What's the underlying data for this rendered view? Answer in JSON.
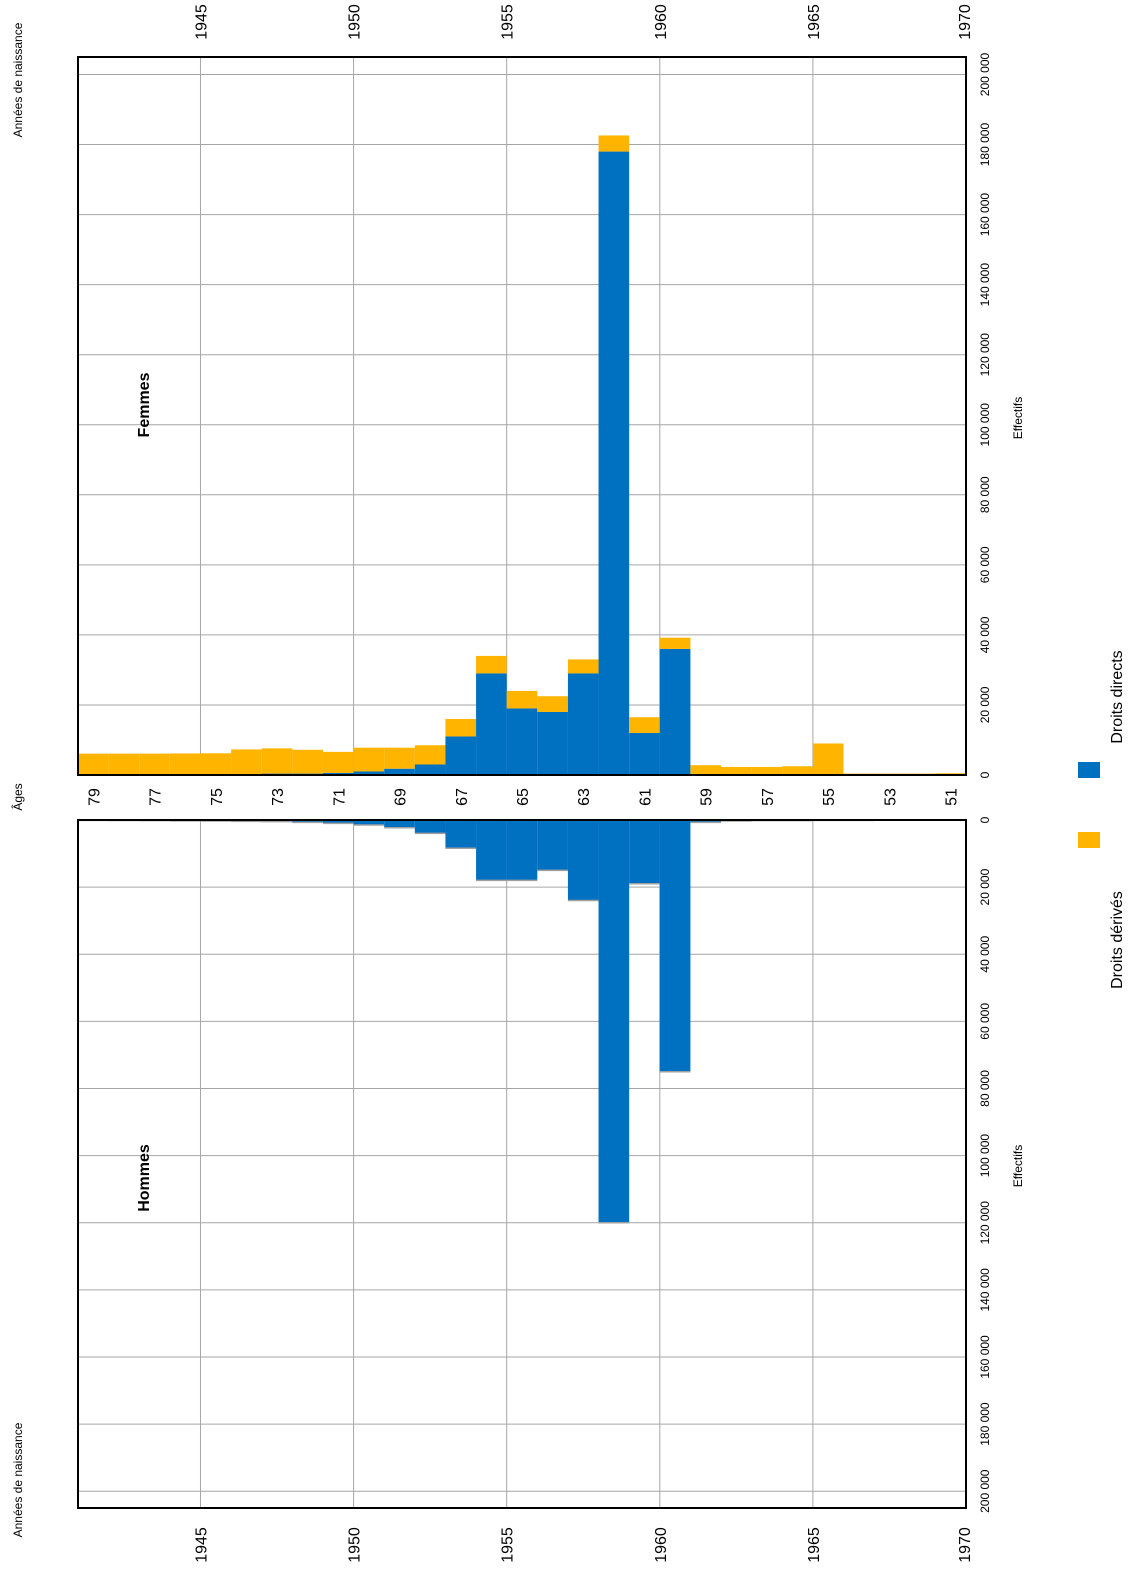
{
  "labels": {
    "birth_years_axis": "Années de naissance",
    "ages_axis": "Âges",
    "effectifs_axis": "Effectifs"
  },
  "colors": {
    "droits_directs": "#0070C0",
    "droits_derives": "#FFB400",
    "grid": "#a6a6a6"
  },
  "legend": [
    {
      "key": "droits_derives",
      "label": "Droits dérivés",
      "color": "#FFB400"
    },
    {
      "key": "droits_directs",
      "label": "Droits directs",
      "color": "#0070C0"
    }
  ],
  "chart_data": {
    "type": "bar",
    "orientation": "population pyramid (rotated 90°)",
    "ages": [
      79,
      78,
      77,
      76,
      75,
      74,
      73,
      72,
      71,
      70,
      69,
      68,
      67,
      66,
      65,
      64,
      63,
      62,
      61,
      60,
      59,
      58,
      57,
      56,
      55,
      54,
      53,
      52,
      51
    ],
    "age_tick_labels": [
      "79",
      "77",
      "75",
      "73",
      "71",
      "69",
      "67",
      "65",
      "63",
      "61",
      "59",
      "57",
      "55",
      "53",
      "51"
    ],
    "value_tick_labels": [
      "0",
      "20 000",
      "40 000",
      "60 000",
      "80 000",
      "100 000",
      "120 000",
      "140 000",
      "160 000",
      "180 000",
      "200 000"
    ],
    "value_range": [
      0,
      205000
    ],
    "birth_year_ticks": [
      "1945",
      "1950",
      "1955",
      "1960",
      "1965",
      "1970"
    ],
    "birth_year_range": [
      1941,
      1970
    ],
    "legend_position": "bottom",
    "panels": [
      {
        "title": "Hommes",
        "series": [
          {
            "name": "Droits directs",
            "values": [
              100,
              150,
              200,
              250,
              300,
              400,
              500,
              700,
              1000,
              1500,
              2300,
              4000,
              8400,
              18000,
              18000,
              15000,
              24000,
              120000,
              19000,
              75000,
              700,
              300,
              200,
              200,
              100,
              100,
              0,
              0,
              0
            ]
          },
          {
            "name": "Droits dérivés",
            "values": [
              0,
              0,
              0,
              0,
              0,
              0,
              0,
              0,
              0,
              0,
              0,
              0,
              0,
              0,
              0,
              0,
              0,
              0,
              0,
              0,
              0,
              0,
              0,
              0,
              0,
              0,
              0,
              0,
              0
            ]
          }
        ]
      },
      {
        "title": "Femmes",
        "series": [
          {
            "name": "Droits directs",
            "values": [
              100,
              100,
              100,
              150,
              200,
              300,
              400,
              400,
              600,
              1000,
              1800,
              3000,
              11000,
              29000,
              19000,
              18000,
              29000,
              178000,
              12000,
              36000,
              0,
              0,
              0,
              0,
              0,
              0,
              0,
              0,
              0
            ]
          },
          {
            "name": "Droits dérivés",
            "values": [
              6000,
              6000,
              6000,
              6000,
              6000,
              7000,
              7200,
              6800,
              6000,
              6800,
              6000,
              5500,
              5000,
              5000,
              5000,
              4500,
              4000,
              4600,
              4500,
              3200,
              2800,
              2300,
              2300,
              2500,
              9000,
              400,
              400,
              400,
              500
            ]
          }
        ]
      }
    ]
  }
}
